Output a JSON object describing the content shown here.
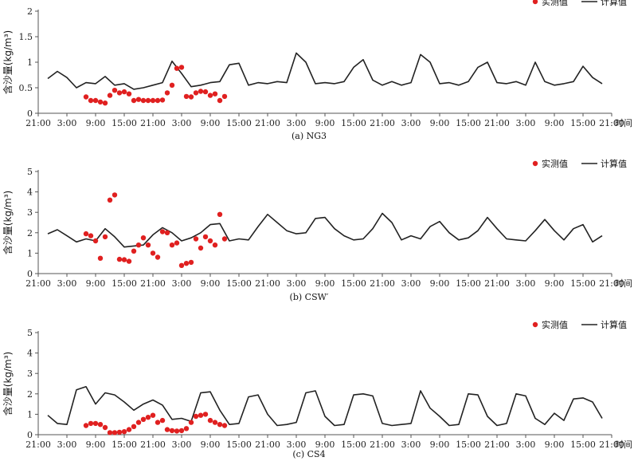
{
  "figure": {
    "x_unit_label": "时间",
    "colors": {
      "measured": "#e02020",
      "computed": "#222222",
      "axis": "#555555",
      "grid": "none"
    }
  },
  "chart_data": [
    {
      "type": "line",
      "caption": "(a) NG3",
      "xlabel": "时间",
      "ylabel": "含沙量(kg/m³)",
      "x_tick_labels": [
        "21:00",
        "3:00",
        "9:00",
        "15:00",
        "21:00",
        "3:00",
        "9:00",
        "15:00",
        "21:00",
        "3:00",
        "9:00",
        "15:00",
        "21:00",
        "3:00",
        "9:00",
        "15:00",
        "21:00",
        "3:00",
        "9:00",
        "15:00",
        "21:00"
      ],
      "x_range_hours": [
        0,
        120
      ],
      "y_ticks": [
        "0",
        "0.5",
        "1",
        "1.5",
        "2"
      ],
      "ylim": [
        0,
        2
      ],
      "legend": [
        "实测值",
        "计算值"
      ],
      "legend_position": "top-right",
      "series": [
        {
          "name": "计算值",
          "style": "line",
          "x": [
            2,
            4,
            6,
            8,
            10,
            12,
            14,
            16,
            18,
            20,
            22,
            24,
            26,
            28,
            30,
            32,
            34,
            36,
            38,
            40,
            42,
            44,
            46,
            48,
            50,
            52,
            54,
            56,
            58,
            60,
            62,
            64,
            66,
            68,
            70,
            72,
            74,
            76,
            78,
            80,
            82,
            84,
            86,
            88,
            90,
            92,
            94,
            96,
            98,
            100,
            102,
            104,
            106,
            108,
            110,
            112,
            114,
            116,
            118
          ],
          "y": [
            0.68,
            0.82,
            0.7,
            0.5,
            0.6,
            0.58,
            0.72,
            0.55,
            0.58,
            0.47,
            0.5,
            0.55,
            0.6,
            1.02,
            0.78,
            0.52,
            0.55,
            0.6,
            0.62,
            0.95,
            0.98,
            0.55,
            0.6,
            0.58,
            0.62,
            0.6,
            1.18,
            1.0,
            0.58,
            0.6,
            0.58,
            0.62,
            0.9,
            1.05,
            0.65,
            0.55,
            0.62,
            0.55,
            0.6,
            1.15,
            1.0,
            0.58,
            0.6,
            0.55,
            0.62,
            0.9,
            1.0,
            0.6,
            0.58,
            0.62,
            0.55,
            1.0,
            0.62,
            0.55,
            0.58,
            0.62,
            0.92,
            0.7,
            0.58
          ]
        },
        {
          "name": "实测值",
          "style": "scatter",
          "x": [
            10,
            11,
            12,
            13,
            14,
            15,
            16,
            17,
            18,
            19,
            20,
            21,
            22,
            23,
            24,
            25,
            26,
            27,
            28,
            29,
            30,
            31,
            32,
            33,
            34,
            35,
            36,
            37,
            38,
            39
          ],
          "y": [
            0.32,
            0.25,
            0.25,
            0.22,
            0.2,
            0.35,
            0.45,
            0.4,
            0.42,
            0.38,
            0.25,
            0.27,
            0.25,
            0.25,
            0.25,
            0.25,
            0.26,
            0.4,
            0.55,
            0.88,
            0.9,
            0.33,
            0.32,
            0.4,
            0.43,
            0.42,
            0.35,
            0.38,
            0.25,
            0.33
          ]
        }
      ]
    },
    {
      "type": "line",
      "caption": "(b) CSW′",
      "xlabel": "时间",
      "ylabel": "含沙量(kg/m³)",
      "x_tick_labels": [
        "21:00",
        "3:00",
        "9:00",
        "15:00",
        "21:00",
        "3:00",
        "9:00",
        "15:00",
        "21:00",
        "3:00",
        "9:00",
        "15:00",
        "21:00",
        "3:00",
        "9:00",
        "15:00",
        "21:00",
        "3:00",
        "9:00",
        "15:00",
        "21:00"
      ],
      "x_range_hours": [
        0,
        120
      ],
      "y_ticks": [
        "0",
        "1",
        "2",
        "3",
        "4",
        "5"
      ],
      "ylim": [
        0,
        5
      ],
      "legend": [
        "实测值",
        "计算值"
      ],
      "legend_position": "top-right",
      "series": [
        {
          "name": "计算值",
          "style": "line",
          "x": [
            2,
            4,
            6,
            8,
            10,
            12,
            14,
            16,
            18,
            20,
            22,
            24,
            26,
            28,
            30,
            32,
            34,
            36,
            38,
            40,
            42,
            44,
            46,
            48,
            50,
            52,
            54,
            56,
            58,
            60,
            62,
            64,
            66,
            68,
            70,
            72,
            74,
            76,
            78,
            80,
            82,
            84,
            86,
            88,
            90,
            92,
            94,
            96,
            98,
            100,
            102,
            104,
            106,
            108,
            110,
            112,
            114,
            116,
            118
          ],
          "y": [
            1.95,
            2.15,
            1.85,
            1.55,
            1.7,
            1.6,
            2.2,
            1.8,
            1.3,
            1.35,
            1.4,
            1.9,
            2.25,
            2.0,
            1.6,
            1.75,
            2.0,
            2.4,
            2.45,
            1.6,
            1.7,
            1.65,
            2.3,
            2.9,
            2.5,
            2.1,
            1.95,
            2.0,
            2.7,
            2.75,
            2.2,
            1.85,
            1.65,
            1.7,
            2.2,
            2.95,
            2.5,
            1.65,
            1.85,
            1.7,
            2.3,
            2.55,
            2.0,
            1.65,
            1.75,
            2.1,
            2.75,
            2.2,
            1.7,
            1.65,
            1.6,
            2.1,
            2.65,
            2.1,
            1.65,
            2.2,
            2.4,
            1.55,
            1.85
          ]
        },
        {
          "name": "实测值",
          "style": "scatter",
          "x": [
            10,
            11,
            12,
            13,
            14,
            15,
            16,
            17,
            18,
            19,
            20,
            21,
            22,
            23,
            24,
            25,
            26,
            27,
            28,
            29,
            30,
            31,
            32,
            33,
            34,
            35,
            36,
            37,
            38,
            39
          ],
          "y": [
            1.95,
            1.85,
            1.6,
            0.75,
            1.8,
            3.6,
            3.85,
            0.7,
            0.68,
            0.6,
            1.1,
            1.4,
            1.75,
            1.4,
            1.0,
            0.8,
            2.05,
            2.0,
            1.4,
            1.5,
            0.4,
            0.5,
            0.55,
            1.7,
            1.25,
            1.8,
            1.6,
            1.4,
            2.9,
            1.7
          ]
        }
      ]
    },
    {
      "type": "line",
      "caption": "(c) CS4",
      "xlabel": "时间",
      "ylabel": "含沙量(kg/m³)",
      "x_tick_labels": [
        "21:00",
        "3:00",
        "9:00",
        "15:00",
        "21:00",
        "3:00",
        "9:00",
        "15:00",
        "21:00",
        "3:00",
        "9:00",
        "15:00",
        "21:00",
        "3:00",
        "9:00",
        "15:00",
        "21:00",
        "3:00",
        "9:00",
        "15:00",
        "21:00"
      ],
      "x_range_hours": [
        0,
        120
      ],
      "y_ticks": [
        "0",
        "1",
        "2",
        "3",
        "4",
        "5"
      ],
      "ylim": [
        0,
        5
      ],
      "legend": [
        "实测值",
        "计算值"
      ],
      "legend_position": "top-right",
      "series": [
        {
          "name": "计算值",
          "style": "line",
          "x": [
            2,
            4,
            6,
            8,
            10,
            12,
            14,
            16,
            18,
            20,
            22,
            24,
            26,
            28,
            30,
            32,
            34,
            36,
            38,
            40,
            42,
            44,
            46,
            48,
            50,
            52,
            54,
            56,
            58,
            60,
            62,
            64,
            66,
            68,
            70,
            72,
            74,
            76,
            78,
            80,
            82,
            84,
            86,
            88,
            90,
            92,
            94,
            96,
            98,
            100,
            102,
            104,
            106,
            108,
            110,
            112,
            114,
            116,
            118
          ],
          "y": [
            0.95,
            0.55,
            0.5,
            2.2,
            2.35,
            1.5,
            2.05,
            1.95,
            1.6,
            1.2,
            1.5,
            1.7,
            1.45,
            0.75,
            0.8,
            0.65,
            2.05,
            2.1,
            1.2,
            0.5,
            0.55,
            1.85,
            1.95,
            1.0,
            0.45,
            0.5,
            0.6,
            2.05,
            2.15,
            0.9,
            0.45,
            0.5,
            1.95,
            2.0,
            1.9,
            0.55,
            0.45,
            0.5,
            0.55,
            2.15,
            1.3,
            0.9,
            0.45,
            0.5,
            2.0,
            1.95,
            0.9,
            0.45,
            0.55,
            2.0,
            1.9,
            0.8,
            0.5,
            1.05,
            0.7,
            1.75,
            1.8,
            1.6,
            0.8
          ]
        },
        {
          "name": "实测值",
          "style": "scatter",
          "x": [
            10,
            11,
            12,
            13,
            14,
            15,
            16,
            17,
            18,
            19,
            20,
            21,
            22,
            23,
            24,
            25,
            26,
            27,
            28,
            29,
            30,
            31,
            32,
            33,
            34,
            35,
            36,
            37,
            38,
            39
          ],
          "y": [
            0.45,
            0.55,
            0.55,
            0.5,
            0.35,
            0.1,
            0.1,
            0.12,
            0.15,
            0.25,
            0.4,
            0.6,
            0.75,
            0.85,
            0.95,
            0.6,
            0.7,
            0.25,
            0.2,
            0.18,
            0.2,
            0.3,
            0.6,
            0.9,
            0.95,
            1.0,
            0.7,
            0.6,
            0.5,
            0.45
          ]
        }
      ]
    }
  ]
}
